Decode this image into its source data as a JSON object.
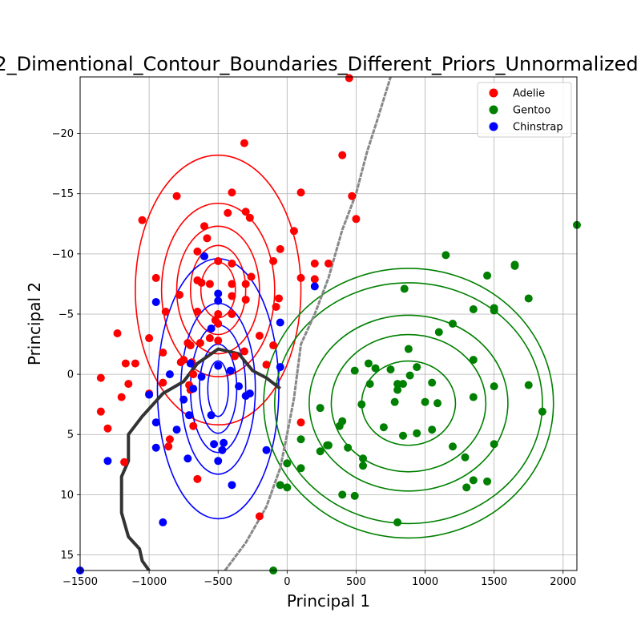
{
  "chart_data": {
    "type": "scatter",
    "title": "2_Dimentional_Contour_Boundaries_Different_Priors_Unnormalized",
    "xlabel": "Principal 1",
    "ylabel": "Principal 2",
    "xlim": [
      -1500,
      2100
    ],
    "ylim": [
      16.3,
      -24.7
    ],
    "y_inverted": true,
    "grid": true,
    "legend_position": "top-right",
    "x_ticks": [
      "-1500",
      "-1000",
      "-500",
      "0",
      "500",
      "1000",
      "1500",
      "2000"
    ],
    "y_ticks": [
      "-20",
      "-15",
      "-10",
      "-5",
      "0",
      "5",
      "10",
      "15"
    ],
    "series": [
      {
        "name": "Adelie",
        "color": "#ff0000",
        "points": [
          [
            -1350,
            0.3
          ],
          [
            -1300,
            4.5
          ],
          [
            -1350,
            3.1
          ],
          [
            -1230,
            -3.4
          ],
          [
            -1200,
            1.9
          ],
          [
            -1150,
            0.8
          ],
          [
            -1170,
            -0.9
          ],
          [
            -1100,
            -0.9
          ],
          [
            -1000,
            -3
          ],
          [
            -1050,
            -12.8
          ],
          [
            -950,
            -8
          ],
          [
            -900,
            -1.8
          ],
          [
            -900,
            0.7
          ],
          [
            -880,
            -5.2
          ],
          [
            -860,
            6
          ],
          [
            -850,
            5.4
          ],
          [
            -800,
            -14.8
          ],
          [
            -780,
            -6.6
          ],
          [
            -750,
            -1.2
          ],
          [
            -700,
            -2.4
          ],
          [
            -720,
            -2.6
          ],
          [
            -710,
            0.9
          ],
          [
            -700,
            1.3
          ],
          [
            -680,
            0
          ],
          [
            -650,
            -5.2
          ],
          [
            -650,
            -7.8
          ],
          [
            -650,
            -10.2
          ],
          [
            -630,
            -2.6
          ],
          [
            -620,
            -7.6
          ],
          [
            -600,
            -12.3
          ],
          [
            -580,
            -11.3
          ],
          [
            -560,
            -3
          ],
          [
            -520,
            -4.5
          ],
          [
            -500,
            -9.4
          ],
          [
            -500,
            -5
          ],
          [
            -500,
            -4.2
          ],
          [
            -430,
            -13.4
          ],
          [
            -400,
            -15.1
          ],
          [
            -400,
            -9.2
          ],
          [
            -400,
            -7.5
          ],
          [
            -400,
            -6.5
          ],
          [
            -400,
            -5
          ],
          [
            -380,
            -1.5
          ],
          [
            -310,
            -19.2
          ],
          [
            -300,
            -7.5
          ],
          [
            -300,
            -6.2
          ],
          [
            -310,
            -1.9
          ],
          [
            -300,
            -13.5
          ],
          [
            -270,
            -13
          ],
          [
            -260,
            -8.1
          ],
          [
            -200,
            -3.2
          ],
          [
            -200,
            11.8
          ],
          [
            -150,
            -0.8
          ],
          [
            -100,
            -2.4
          ],
          [
            -80,
            -5.6
          ],
          [
            -60,
            -6.3
          ],
          [
            -100,
            -9.4
          ],
          [
            -50,
            -10.4
          ],
          [
            50,
            -11.9
          ],
          [
            100,
            -15.1
          ],
          [
            100,
            -8
          ],
          [
            100,
            4
          ],
          [
            200,
            -9.2
          ],
          [
            200,
            -7.9
          ],
          [
            300,
            -9.2
          ],
          [
            400,
            -18.2
          ],
          [
            450,
            -24.6
          ],
          [
            470,
            -14.8
          ],
          [
            500,
            -12.9
          ],
          [
            -1180,
            7.3
          ],
          [
            -680,
            4.3
          ],
          [
            -650,
            8.7
          ],
          [
            -1000,
            1.6
          ],
          [
            -690,
            -1
          ],
          [
            -770,
            -1
          ],
          [
            -500,
            -2.8
          ],
          [
            -560,
            -7.5
          ]
        ]
      },
      {
        "name": "Gentoo",
        "color": "#008000",
        "points": [
          [
            -50,
            9.2
          ],
          [
            0,
            7.4
          ],
          [
            0,
            9.4
          ],
          [
            100,
            5.4
          ],
          [
            100,
            7.8
          ],
          [
            240,
            2.8
          ],
          [
            240,
            6.4
          ],
          [
            290,
            5.9
          ],
          [
            300,
            5.9
          ],
          [
            380,
            4.3
          ],
          [
            400,
            3.9
          ],
          [
            400,
            10
          ],
          [
            440,
            6.1
          ],
          [
            490,
            10.1
          ],
          [
            490,
            -0.3
          ],
          [
            540,
            2.5
          ],
          [
            550,
            7.6
          ],
          [
            550,
            7
          ],
          [
            590,
            -0.9
          ],
          [
            600,
            0.8
          ],
          [
            640,
            -0.5
          ],
          [
            700,
            4.4
          ],
          [
            750,
            -0.4
          ],
          [
            780,
            2.3
          ],
          [
            800,
            0.8
          ],
          [
            800,
            1.3
          ],
          [
            800,
            12.3
          ],
          [
            840,
            0.8
          ],
          [
            840,
            5.1
          ],
          [
            850,
            -7.1
          ],
          [
            880,
            -2.1
          ],
          [
            890,
            0.1
          ],
          [
            940,
            4.9
          ],
          [
            940,
            -0.6
          ],
          [
            1000,
            2.3
          ],
          [
            1050,
            0.7
          ],
          [
            1050,
            4.6
          ],
          [
            1090,
            2.4
          ],
          [
            1100,
            -3.5
          ],
          [
            1150,
            -9.9
          ],
          [
            1200,
            -4.2
          ],
          [
            1200,
            6
          ],
          [
            1290,
            6.9
          ],
          [
            1300,
            9.4
          ],
          [
            1350,
            1.9
          ],
          [
            1350,
            -1.2
          ],
          [
            1350,
            8.8
          ],
          [
            1350,
            -5.4
          ],
          [
            1450,
            -8.2
          ],
          [
            1450,
            8.9
          ],
          [
            1500,
            5.8
          ],
          [
            1500,
            -5.5
          ],
          [
            1500,
            -5.3
          ],
          [
            1500,
            1
          ],
          [
            1650,
            -9.1
          ],
          [
            1650,
            -9
          ],
          [
            1750,
            0.9
          ],
          [
            1750,
            -6.3
          ],
          [
            1850,
            3.1
          ],
          [
            2100,
            -12.4
          ],
          [
            -100,
            16.3
          ]
        ]
      },
      {
        "name": "Chinstrap",
        "color": "#0000ff",
        "points": [
          [
            -1500,
            16.3
          ],
          [
            -1300,
            7.2
          ],
          [
            -1000,
            1.7
          ],
          [
            -950,
            6.1
          ],
          [
            -950,
            4
          ],
          [
            -950,
            -6
          ],
          [
            -900,
            12.3
          ],
          [
            -850,
            0
          ],
          [
            -800,
            4.6
          ],
          [
            -750,
            2.1
          ],
          [
            -720,
            7
          ],
          [
            -710,
            3.4
          ],
          [
            -700,
            -0.9
          ],
          [
            -680,
            1.2
          ],
          [
            -620,
            0.2
          ],
          [
            -600,
            -9.8
          ],
          [
            -550,
            3.4
          ],
          [
            -550,
            -3.8
          ],
          [
            -530,
            5.8
          ],
          [
            -500,
            7.2
          ],
          [
            -500,
            -6.7
          ],
          [
            -500,
            -6.1
          ],
          [
            -500,
            -0.7
          ],
          [
            -470,
            6.3
          ],
          [
            -460,
            5.7
          ],
          [
            -410,
            -0.3
          ],
          [
            -400,
            9.2
          ],
          [
            -350,
            1
          ],
          [
            -300,
            1.8
          ],
          [
            -270,
            1.6
          ],
          [
            -150,
            6.3
          ],
          [
            -50,
            -0.6
          ],
          [
            -50,
            -4.3
          ],
          [
            200,
            -7.3
          ]
        ]
      }
    ],
    "contours": [
      {
        "name": "Adelie",
        "color": "#ff0000",
        "center": [
          -500,
          -7
        ],
        "semi_axes": [
          [
            125,
            2.3
          ],
          [
            200,
            3.7
          ],
          [
            300,
            5.3
          ],
          [
            410,
            7.2
          ],
          [
            600,
            11.2
          ]
        ]
      },
      {
        "name": "Chinstrap",
        "color": "#0000ff",
        "center": [
          -500,
          1.2
        ],
        "semi_axes": [
          [
            75,
            2.3
          ],
          [
            135,
            3.7
          ],
          [
            200,
            5.3
          ],
          [
            270,
            7.1
          ],
          [
            440,
            10.8
          ]
        ]
      },
      {
        "name": "Gentoo",
        "color": "#008000",
        "center": [
          880,
          2.4
        ],
        "semi_axes": [
          [
            340,
            3.5
          ],
          [
            560,
            5.7
          ],
          [
            720,
            7.3
          ],
          [
            970,
            10
          ],
          [
            1050,
            11.2
          ]
        ]
      }
    ],
    "boundaries": [
      {
        "color": "#333333",
        "points": [
          [
            -50,
            1.2
          ],
          [
            -150,
            0.3
          ],
          [
            -250,
            -0.3
          ],
          [
            -350,
            -1.7
          ],
          [
            -500,
            -2.1
          ],
          [
            -650,
            -0.9
          ],
          [
            -750,
            0.6
          ],
          [
            -900,
            1.6
          ],
          [
            -1050,
            3.5
          ],
          [
            -1150,
            5
          ],
          [
            -1150,
            7.2
          ],
          [
            -1200,
            8.5
          ],
          [
            -1200,
            11.5
          ],
          [
            -1150,
            13.5
          ],
          [
            -1070,
            14.5
          ],
          [
            -1050,
            15.5
          ],
          [
            -1000,
            16.3
          ]
        ]
      },
      {
        "color": "#888888",
        "points": [
          [
            -450,
            16.3
          ],
          [
            -300,
            14
          ],
          [
            -150,
            11
          ],
          [
            -50,
            7.8
          ],
          [
            0,
            5
          ],
          [
            50,
            2
          ],
          [
            100,
            -2.5
          ],
          [
            200,
            -5
          ],
          [
            300,
            -8
          ],
          [
            400,
            -12
          ],
          [
            500,
            -15
          ],
          [
            580,
            -18.5
          ],
          [
            650,
            -21
          ],
          [
            750,
            -24.7
          ]
        ]
      }
    ]
  }
}
